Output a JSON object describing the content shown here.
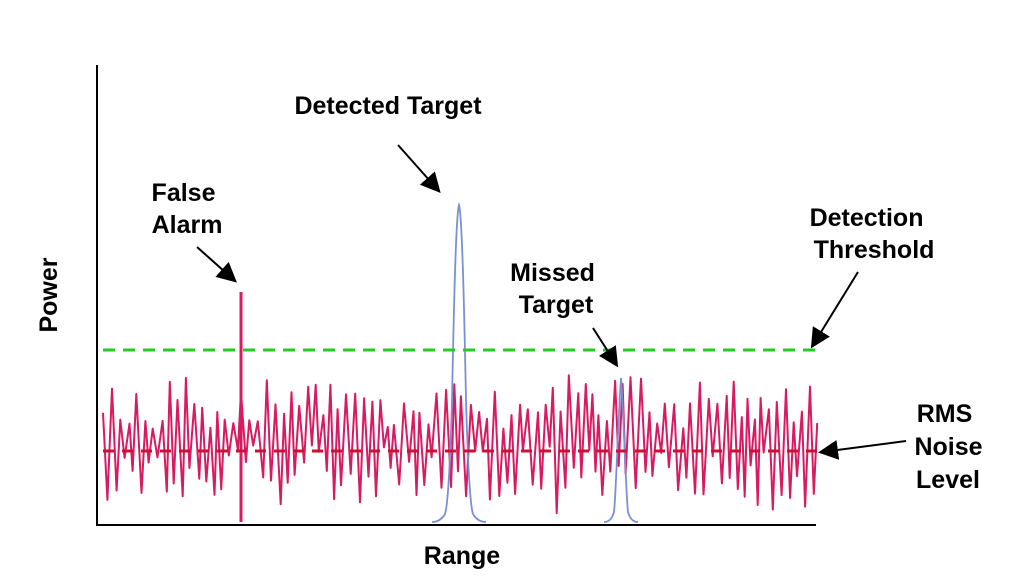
{
  "labels": {
    "detected_target": "Detected Target",
    "false_alarm": [
      "False",
      "Alarm"
    ],
    "detection_threshold": [
      "Detection",
      "Threshold"
    ],
    "missed_target": [
      "Missed",
      "Target"
    ],
    "rms_noise_level": [
      "RMS",
      "Noise",
      "Level"
    ]
  },
  "axes": {
    "xlabel": "Range",
    "ylabel": "Power"
  },
  "colors": {
    "noise": "#d81b60",
    "target": "#7b8fd4",
    "threshold": "#22cc22",
    "rms_line": "#cc1133",
    "axis": "#000000"
  }
}
